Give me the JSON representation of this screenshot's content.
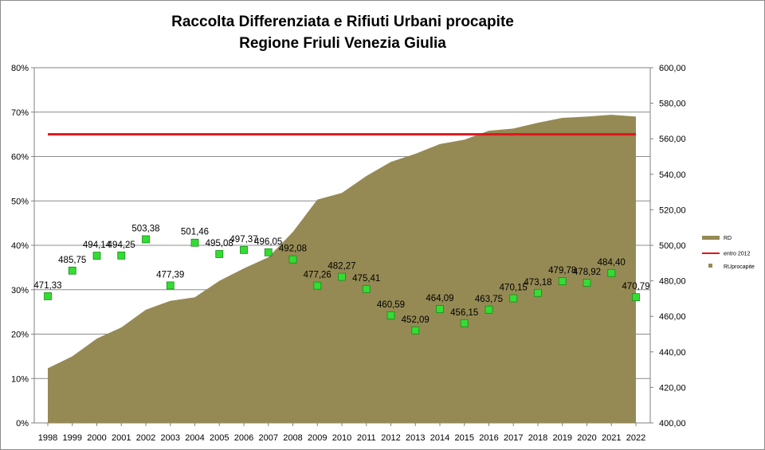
{
  "chart_data": {
    "type": "area",
    "title_line1": "Raccolta Differenziata e Rifiuti Urbani procapite",
    "title_line2": "Regione Friuli Venezia Giulia",
    "categories": [
      "1998",
      "1999",
      "2000",
      "2001",
      "2002",
      "2003",
      "2004",
      "2005",
      "2006",
      "2007",
      "2008",
      "2009",
      "2010",
      "2011",
      "2012",
      "2013",
      "2014",
      "2015",
      "2016",
      "2017",
      "2018",
      "2019",
      "2020",
      "2021",
      "2022"
    ],
    "y_left": {
      "ticks": [
        "0%",
        "10%",
        "20%",
        "30%",
        "40%",
        "50%",
        "60%",
        "70%",
        "80%"
      ],
      "min": 0,
      "max": 80
    },
    "y_right": {
      "ticks": [
        "400,00",
        "420,00",
        "440,00",
        "460,00",
        "480,00",
        "500,00",
        "520,00",
        "540,00",
        "560,00",
        "580,00",
        "600,00"
      ],
      "min": 400,
      "max": 600
    },
    "series": [
      {
        "name": "RD",
        "kind": "area",
        "axis": "left",
        "color": "#958a54",
        "values": [
          12.3,
          15.0,
          19.0,
          21.5,
          25.5,
          27.5,
          28.3,
          32.0,
          34.8,
          37.3,
          43.0,
          50.3,
          51.8,
          55.6,
          58.8,
          60.6,
          62.8,
          63.8,
          65.8,
          66.3,
          67.6,
          68.7,
          69.0,
          69.4,
          69.0
        ]
      },
      {
        "name": "entro 2012",
        "kind": "line",
        "axis": "left",
        "color": "#e0161c",
        "value": 65
      },
      {
        "name": "RUprocapite",
        "kind": "scatter",
        "axis": "right",
        "color": "#33dd33",
        "values": [
          471.33,
          485.75,
          494.14,
          494.25,
          503.38,
          477.39,
          501.46,
          495.08,
          497.37,
          496.05,
          492.08,
          477.26,
          482.27,
          475.41,
          460.59,
          452.09,
          464.09,
          456.15,
          463.75,
          470.15,
          473.18,
          479.78,
          478.92,
          484.4,
          470.79
        ],
        "labels": [
          "471,33",
          "485,75",
          "494,14",
          "494,25",
          "503,38",
          "477,39",
          "501,46",
          "495,08",
          "497,37",
          "496,05",
          "492,08",
          "477,26",
          "482,27",
          "475,41",
          "460,59",
          "452,09",
          "464,09",
          "456,15",
          "463,75",
          "470,15",
          "473,18",
          "479,78",
          "478,92",
          "484,40",
          "470,79"
        ]
      }
    ],
    "legend": [
      "RD",
      "entro 2012",
      "RUprocapite"
    ],
    "legend_position": "right",
    "grid": "horizontal"
  }
}
